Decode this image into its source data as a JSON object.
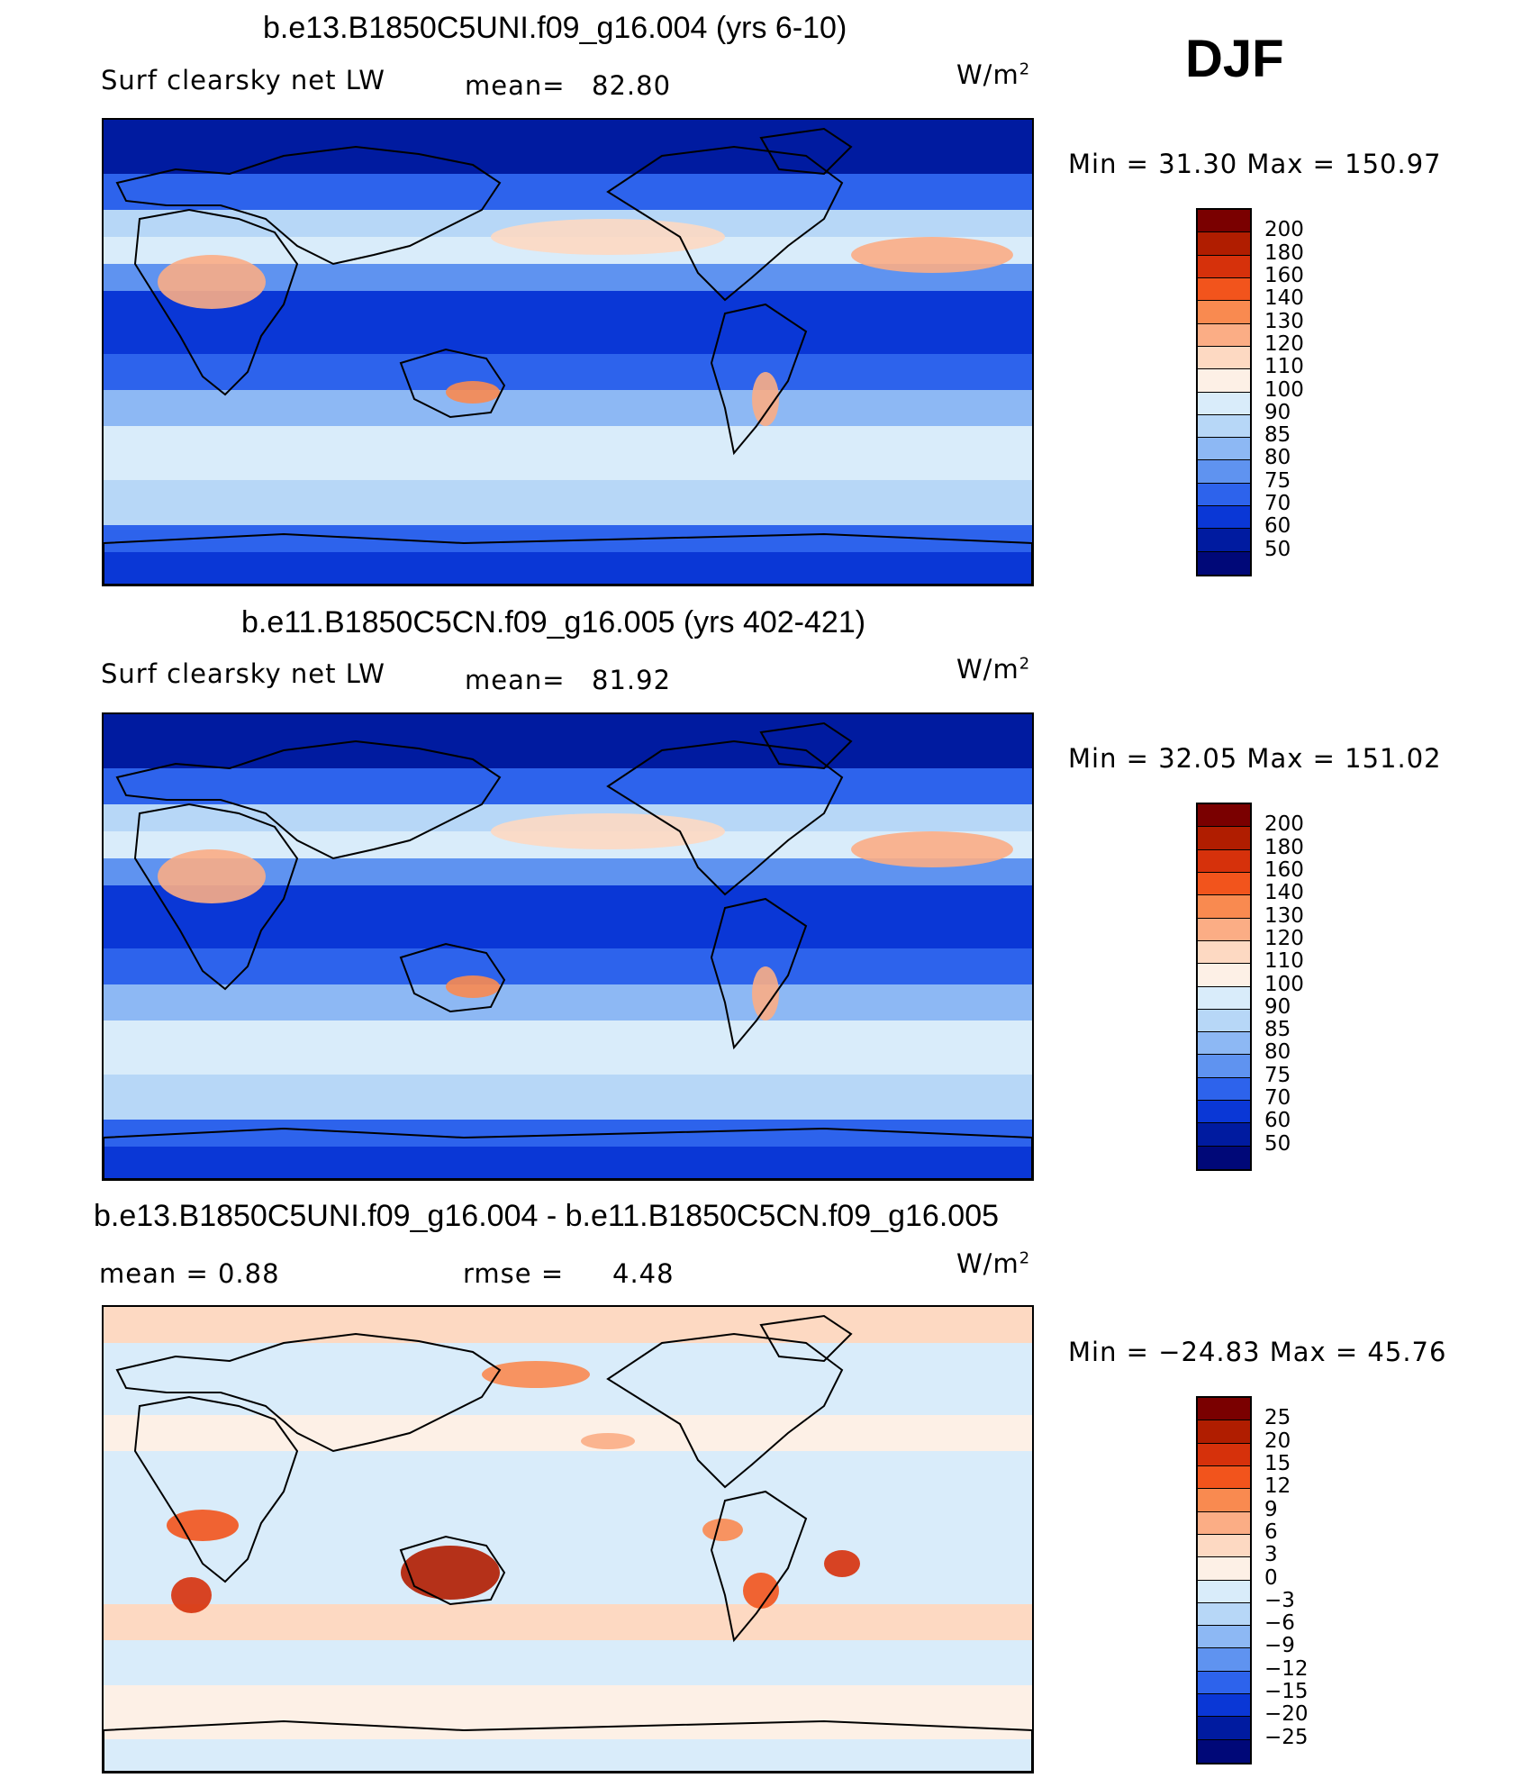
{
  "season": "DJF",
  "panels": [
    {
      "title": "b.e13.B1850C5UNI.f09_g16.004 (yrs 6-10)",
      "left_label": "Surf  clearsky  net  LW",
      "mid_key": "mean=",
      "mid_value": "82.80",
      "units_base": "W/m",
      "units_sup": "2",
      "minmax": "Min  =    31.30  Max  =  150.97",
      "colorbar": {
        "labels": [
          "200",
          "180",
          "160",
          "140",
          "130",
          "120",
          "110",
          "100",
          "90",
          "85",
          "80",
          "75",
          "70",
          "60",
          "50"
        ],
        "colors": [
          "#7a0000",
          "#b01d00",
          "#d6310b",
          "#f2541c",
          "#f98a50",
          "#fbad85",
          "#fdd9c2",
          "#fdf0e6",
          "#d9ecfa",
          "#b7d7f7",
          "#8db8f4",
          "#5f93f0",
          "#2d63ec",
          "#0a37d6",
          "#001ba0",
          "#000878"
        ]
      },
      "map_variant": "mean"
    },
    {
      "title": "b.e11.B1850C5CN.f09_g16.005 (yrs 402-421)",
      "left_label": "Surf  clearsky  net  LW",
      "mid_key": "mean=",
      "mid_value": "81.92",
      "units_base": "W/m",
      "units_sup": "2",
      "minmax": "Min  =    32.05  Max  =  151.02",
      "colorbar": {
        "labels": [
          "200",
          "180",
          "160",
          "140",
          "130",
          "120",
          "110",
          "100",
          "90",
          "85",
          "80",
          "75",
          "70",
          "60",
          "50"
        ],
        "colors": [
          "#7a0000",
          "#b01d00",
          "#d6310b",
          "#f2541c",
          "#f98a50",
          "#fbad85",
          "#fdd9c2",
          "#fdf0e6",
          "#d9ecfa",
          "#b7d7f7",
          "#8db8f4",
          "#5f93f0",
          "#2d63ec",
          "#0a37d6",
          "#001ba0",
          "#000878"
        ]
      },
      "map_variant": "mean"
    },
    {
      "title": "b.e13.B1850C5UNI.f09_g16.004 - b.e11.B1850C5CN.f09_g16.005",
      "left_label": "mean  =      0.88",
      "mid_key": "rmse  =",
      "mid_value": "4.48",
      "units_base": "W/m",
      "units_sup": "2",
      "minmax": "Min  =  −24.83  Max  =     45.76",
      "colorbar": {
        "labels": [
          "25",
          "20",
          "15",
          "12",
          "9",
          "6",
          "3",
          "0",
          "−3",
          "−6",
          "−9",
          "−12",
          "−15",
          "−20",
          "−25"
        ],
        "colors": [
          "#7a0000",
          "#b01d00",
          "#d6310b",
          "#f2541c",
          "#f98a50",
          "#fbad85",
          "#fdd9c2",
          "#fdf0e6",
          "#d9ecfa",
          "#b7d7f7",
          "#8db8f4",
          "#5f93f0",
          "#2d63ec",
          "#0a37d6",
          "#001ba0",
          "#000878"
        ]
      },
      "map_variant": "diff"
    }
  ]
}
